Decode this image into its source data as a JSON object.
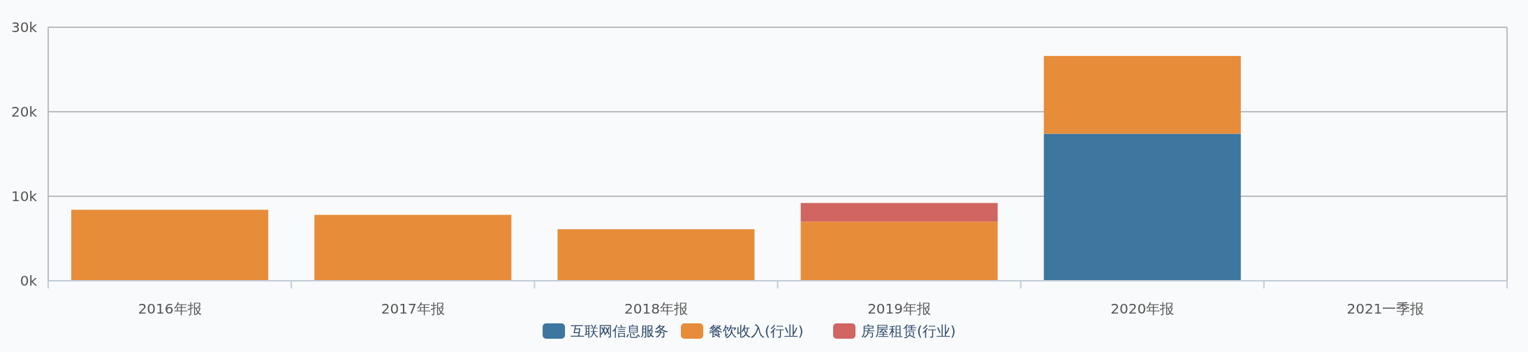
{
  "chart_data": {
    "type": "bar",
    "stacked": true,
    "categories": [
      "2016年报",
      "2017年报",
      "2018年报",
      "2019年报",
      "2020年报",
      "2021一季报"
    ],
    "series": [
      {
        "name": "互联网信息服务",
        "color": "#3d769f",
        "values": [
          null,
          null,
          null,
          null,
          17400,
          null
        ]
      },
      {
        "name": "餐饮收入(行业)",
        "color": "#e78c38",
        "values": [
          8400,
          7800,
          6100,
          7000,
          9200,
          null
        ]
      },
      {
        "name": "房屋租赁(行业)",
        "color": "#d06562",
        "values": [
          null,
          null,
          null,
          2200,
          null,
          null
        ]
      }
    ],
    "ylim": [
      0,
      30000
    ],
    "yticks": [
      {
        "value": 0,
        "label": "0k"
      },
      {
        "value": 10000,
        "label": "10k"
      },
      {
        "value": 20000,
        "label": "20k"
      },
      {
        "value": 30000,
        "label": "30k"
      }
    ],
    "grid": "y",
    "legend": "bottom"
  }
}
